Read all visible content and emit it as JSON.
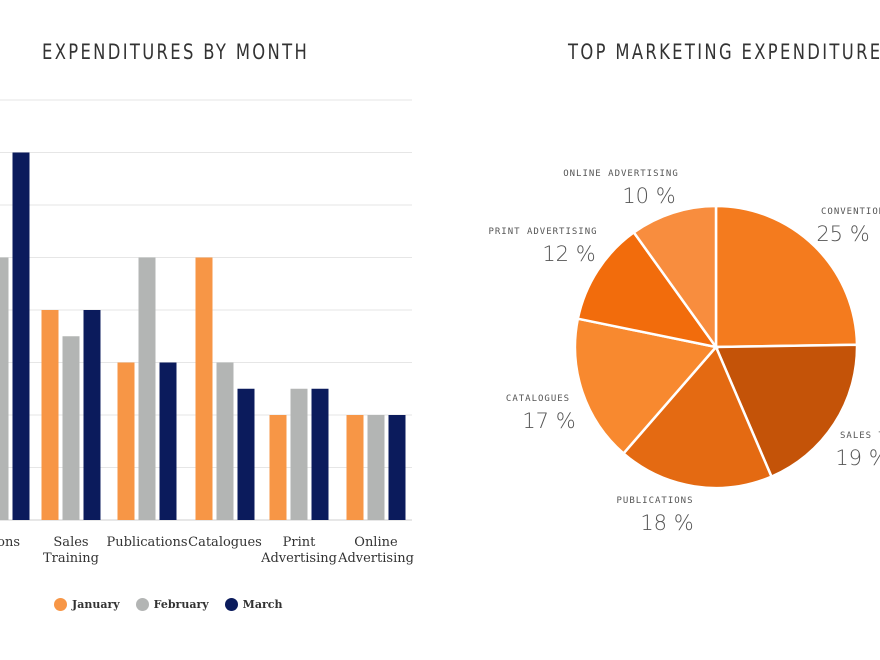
{
  "chart_data": [
    {
      "type": "bar",
      "title": "EXPENDITURES BY MONTH",
      "categories": [
        "Conventions",
        "Sales Training",
        "Publications",
        "Catalogues",
        "Print Advertising",
        "Online Advertising"
      ],
      "category_labels": [
        [
          "ations"
        ],
        [
          "Sales",
          "Training"
        ],
        [
          "Publications"
        ],
        [
          "Catalogues"
        ],
        [
          "Print",
          "Advertising"
        ],
        [
          "Online",
          "Advertising"
        ]
      ],
      "series": [
        {
          "name": "January",
          "color": "#f79646",
          "values": [
            null,
            4,
            3,
            5,
            2,
            2
          ]
        },
        {
          "name": "February",
          "color": "#b3b5b4",
          "values": [
            5,
            3.5,
            5,
            3,
            2.5,
            2
          ]
        },
        {
          "name": "March",
          "color": "#0b1b5c",
          "values": [
            7,
            4,
            3,
            2.5,
            2.5,
            2
          ]
        }
      ],
      "ylim": [
        0,
        8
      ],
      "grid": true,
      "legend_position": "bottom-left"
    },
    {
      "type": "pie",
      "title": "TOP MARKETING EXPENDITURES",
      "slices": [
        {
          "label": "CONVENTIONS",
          "shown_label": "CONVENTION",
          "value": 25,
          "display": "25 %",
          "color": "#f47b1e"
        },
        {
          "label": "SALES TRAINING",
          "shown_label": "SALES T",
          "value": 19,
          "display": "19 %",
          "color": "#c45308"
        },
        {
          "label": "PUBLICATIONS",
          "shown_label": "PUBLICATIONS",
          "value": 18,
          "display": "18 %",
          "color": "#e46a12"
        },
        {
          "label": "CATALOGUES",
          "shown_label": "CATALOGUES",
          "value": 17,
          "display": "17 %",
          "color": "#f8892f"
        },
        {
          "label": "PRINT ADVERTISING",
          "shown_label": "PRINT ADVERTISING",
          "value": 12,
          "display": "12 %",
          "color": "#f26c0c"
        },
        {
          "label": "ONLINE ADVERTISING",
          "shown_label": "ONLINE ADVERTISING",
          "value": 10,
          "display": "10 %",
          "color": "#f88d3e"
        }
      ]
    }
  ]
}
